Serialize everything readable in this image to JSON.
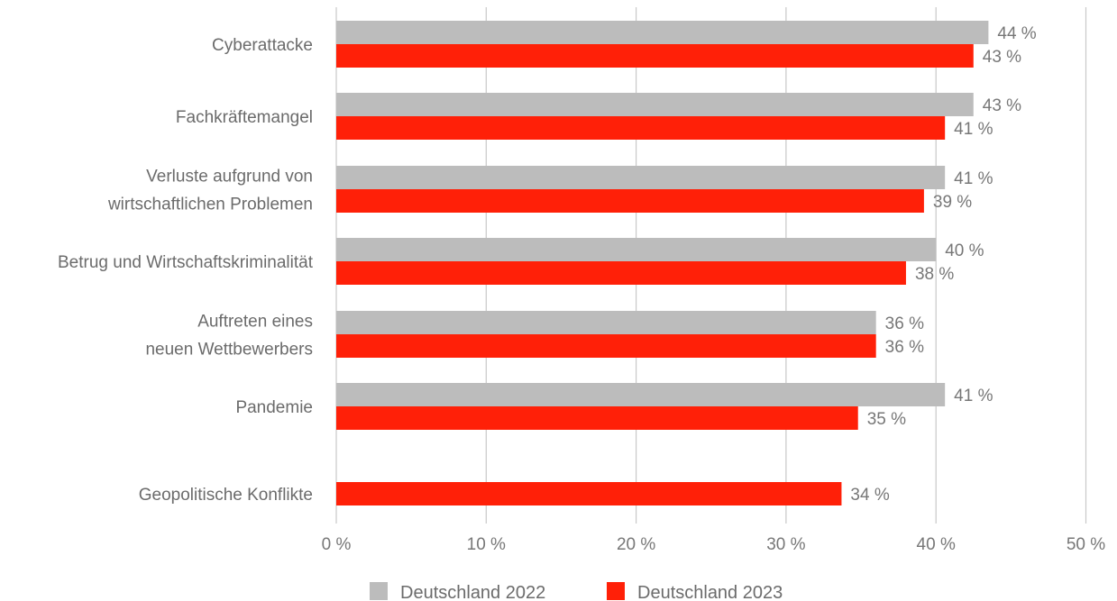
{
  "chart_data": {
    "type": "bar",
    "orientation": "horizontal",
    "categories": [
      [
        "Cyberattacke"
      ],
      [
        "Fachkräftemangel"
      ],
      [
        "Verluste aufgrund von",
        "wirtschaftlichen Problemen"
      ],
      [
        "Betrug und Wirtschaftskriminalität"
      ],
      [
        "Auftreten eines",
        "neuen Wettbewerbers"
      ],
      [
        "Pandemie"
      ],
      [
        "Geopolitische Konflikte"
      ]
    ],
    "series": [
      {
        "name": "Deutschland 2022",
        "color": "#bcbcbc",
        "values": [
          43.5,
          42.5,
          40.6,
          40.0,
          36.0,
          40.6,
          null
        ],
        "labels": [
          "44 %",
          "43 %",
          "41 %",
          "40 %",
          "36 %",
          "41 %",
          ""
        ]
      },
      {
        "name": "Deutschland 2023",
        "color": "#ff2008",
        "values": [
          42.5,
          40.6,
          39.2,
          38.0,
          36.0,
          34.8,
          33.7
        ],
        "labels": [
          "43 %",
          "41 %",
          "39 %",
          "38 %",
          "36 %",
          "35 %",
          "34 %"
        ]
      }
    ],
    "xlim": [
      0,
      50
    ],
    "xticks": [
      0,
      10,
      20,
      30,
      40,
      50
    ],
    "xtick_labels": [
      "0 %",
      "10 %",
      "20 %",
      "30 %",
      "40 %",
      "50 %"
    ],
    "grid": true,
    "legend_position": "bottom-center",
    "title": "",
    "xlabel": "",
    "ylabel": ""
  }
}
